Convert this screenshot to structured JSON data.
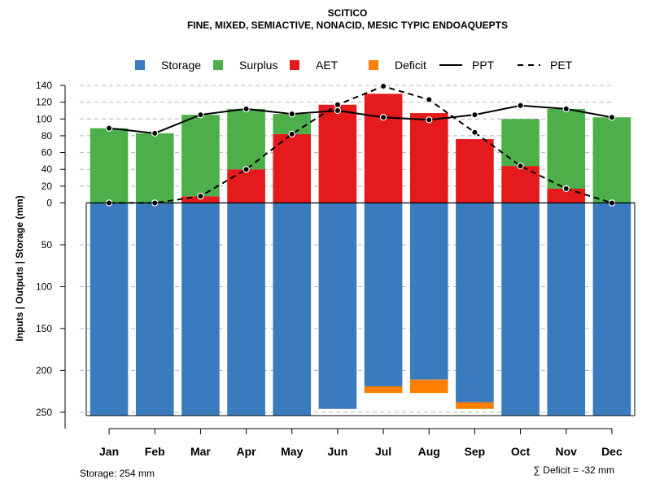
{
  "chart_data": {
    "type": "bar",
    "title": "SCITICO",
    "subtitle": "FINE, MIXED, SEMIACTIVE, NONACID, MESIC TYPIC ENDOAQUEPTS",
    "ylabel": "Inputs | Outputs | Storage     (mm)",
    "categories": [
      "Jan",
      "Feb",
      "Mar",
      "Apr",
      "May",
      "Jun",
      "Jul",
      "Aug",
      "Sep",
      "Oct",
      "Nov",
      "Dec"
    ],
    "yticks_upper": [
      0,
      20,
      40,
      60,
      80,
      100,
      120,
      140
    ],
    "yticks_lower": [
      50,
      100,
      150,
      200,
      250
    ],
    "ylim_upper": [
      0,
      140
    ],
    "ylim_lower": [
      0,
      254
    ],
    "legend": [
      "Storage",
      "Surplus",
      "AET",
      "Deficit",
      "PPT",
      "PET"
    ],
    "colors": {
      "storage": "#3a7bbd",
      "surplus": "#4daf4a",
      "aet": "#e41a1c",
      "deficit": "#ff7f00",
      "line": "#000000"
    },
    "series": [
      {
        "name": "AET",
        "values": [
          0,
          0,
          8,
          40,
          82,
          117,
          130,
          107,
          76,
          44,
          17,
          0
        ]
      },
      {
        "name": "Surplus",
        "values": [
          89,
          83,
          97,
          72,
          24,
          0,
          0,
          0,
          0,
          56,
          95,
          102
        ]
      },
      {
        "name": "Storage",
        "values": [
          254,
          254,
          254,
          254,
          254,
          246,
          219,
          211,
          238,
          254,
          254,
          254
        ]
      },
      {
        "name": "Deficit",
        "values": [
          0,
          0,
          0,
          0,
          0,
          0,
          8,
          16,
          8,
          0,
          0,
          0
        ]
      },
      {
        "name": "PPT",
        "values": [
          89,
          83,
          105,
          112,
          106,
          110,
          102,
          99,
          105,
          116,
          112,
          102
        ]
      },
      {
        "name": "PET",
        "values": [
          0,
          0,
          8,
          40,
          82,
          117,
          139,
          123,
          84,
          44,
          17,
          0
        ]
      }
    ]
  },
  "footer": {
    "storage_label": "Storage: 254 mm",
    "deficit_label": "∑ Deficit = -32 mm"
  }
}
